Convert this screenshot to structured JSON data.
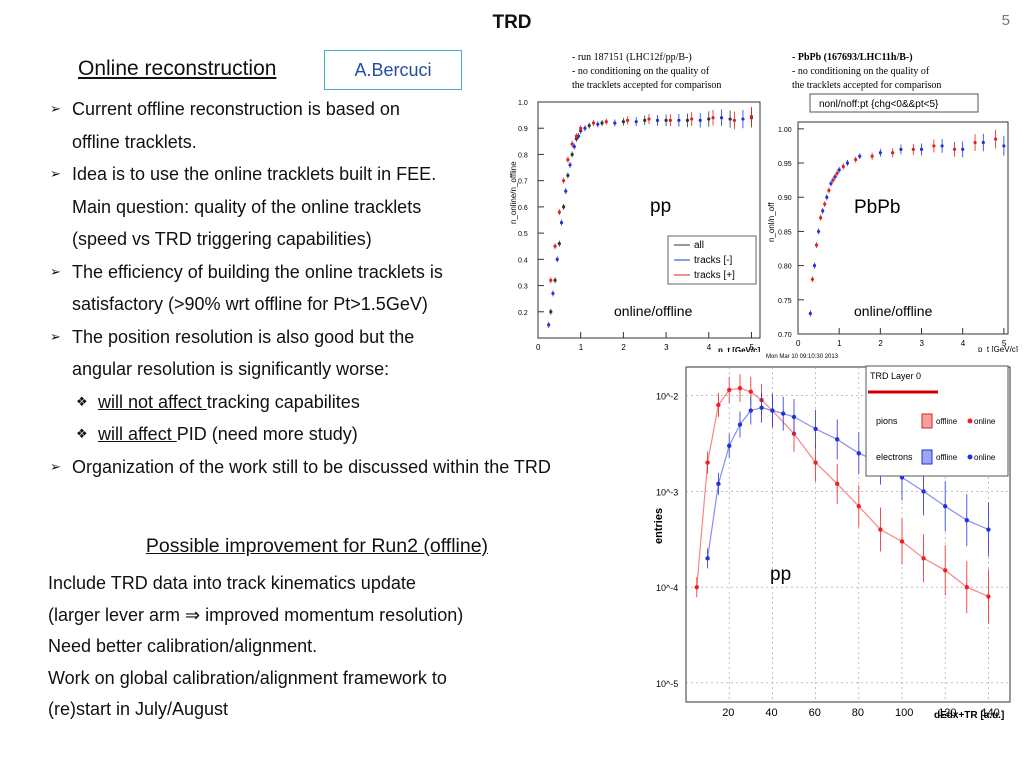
{
  "slide": {
    "title": "TRD",
    "page_number": "5",
    "online_heading": "Online reconstruction",
    "author": "A.Bercuci",
    "bullets": [
      "Current offline reconstruction is based on",
      "offline tracklets.",
      "Idea is to use the online tracklets built in FEE.",
      "Main question:  quality of the online tracklets",
      "(speed vs TRD triggering capabilities)",
      "The efficiency of building the online tracklets is",
      "satisfactory (>90% wrt offline for Pt>1.5GeV)",
      "The position resolution is also good but the",
      "angular resolution is significantly worse:"
    ],
    "sub_bullets": [
      {
        "underlined": "will not affect ",
        "rest": "tracking capabilites"
      },
      {
        "underlined": "will affect ",
        "rest": "PID (need more study)"
      }
    ],
    "last_bullet": "Organization of the work still to be discussed within the TRD",
    "run2_heading": "Possible improvement for Run2 (offline)",
    "run2_lines": [
      "Include TRD data into track kinematics update",
      "(larger lever arm ",
      " improved momentum resolution)",
      "Need better calibration/alignment.",
      "Work on global calibration/alignment framework to",
      "(re)start in July/August"
    ],
    "arrow_symbol": "⇒",
    "bullet_marker": "➢",
    "sub_marker": "❖"
  },
  "chart_data": [
    {
      "type": "scatter",
      "caption": [
        "- run 187151 (LHC12f/pp/B-)",
        "- no conditioning on the quality of",
        "the tracklets accepted for comparison"
      ],
      "overlay_label": "pp",
      "sub_label": "online/offline",
      "ylabel": "n_online/n_offline",
      "xlabel": "p_t [GeV/c]",
      "xlim": [
        0,
        5.2
      ],
      "ylim": [
        0.1,
        1.0
      ],
      "x_ticks": [
        "0",
        "1",
        "2",
        "3",
        "4",
        "5"
      ],
      "y_ticks": [
        "0.2",
        "0.3",
        "0.4",
        "0.5",
        "0.6",
        "0.7",
        "0.8",
        "0.9",
        "1.0"
      ],
      "legend": [
        "all",
        "tracks [-]",
        "tracks [+]"
      ],
      "legend_position": "bottom-right",
      "colors": {
        "all": "#333333",
        "neg": "#2233dd",
        "pos": "#dd2222"
      },
      "series": [
        {
          "name": "all",
          "x": [
            0.3,
            0.4,
            0.5,
            0.6,
            0.7,
            0.8,
            0.9,
            1.0,
            1.2,
            1.5,
            2.0,
            2.5,
            3.0,
            3.5,
            4.0,
            4.5,
            5.0
          ],
          "y": [
            0.2,
            0.32,
            0.46,
            0.6,
            0.72,
            0.8,
            0.86,
            0.89,
            0.91,
            0.92,
            0.925,
            0.93,
            0.93,
            0.93,
            0.935,
            0.935,
            0.94
          ]
        },
        {
          "name": "tracks [-]",
          "x": [
            0.25,
            0.35,
            0.45,
            0.55,
            0.65,
            0.75,
            0.85,
            0.95,
            1.1,
            1.4,
            1.8,
            2.3,
            2.8,
            3.3,
            3.8,
            4.3,
            4.8
          ],
          "y": [
            0.15,
            0.27,
            0.4,
            0.54,
            0.66,
            0.76,
            0.83,
            0.87,
            0.9,
            0.915,
            0.92,
            0.925,
            0.93,
            0.93,
            0.93,
            0.94,
            0.935
          ]
        },
        {
          "name": "tracks [+]",
          "x": [
            0.3,
            0.4,
            0.5,
            0.6,
            0.7,
            0.8,
            0.9,
            1.0,
            1.3,
            1.6,
            2.1,
            2.6,
            3.1,
            3.6,
            4.1,
            4.6,
            5.0
          ],
          "y": [
            0.32,
            0.45,
            0.58,
            0.7,
            0.78,
            0.84,
            0.87,
            0.9,
            0.92,
            0.925,
            0.93,
            0.935,
            0.93,
            0.935,
            0.94,
            0.93,
            0.945
          ]
        }
      ]
    },
    {
      "type": "scatter",
      "caption": [
        "- PbPb (167693/LHC11h/B-)",
        "- no conditioning on the quality of",
        "the tracklets accepted for comparison"
      ],
      "cut_label": "nonl/noff:pt {chg<0&&pt<5}",
      "overlay_label": "PbPb",
      "sub_label": "online/offline",
      "ylabel": "n_onl/n_off",
      "xlabel": "p_t [GeV/c]",
      "xlim": [
        0,
        5.1
      ],
      "ylim": [
        0.7,
        1.01
      ],
      "x_ticks": [
        "0",
        "1",
        "2",
        "3",
        "4",
        "5"
      ],
      "y_ticks": [
        "0.70",
        "0.75",
        "0.80",
        "0.85",
        "0.90",
        "0.95",
        "1.00"
      ],
      "colors": {
        "neg": "#2233dd",
        "pos": "#dd2222"
      },
      "series": [
        {
          "name": "",
          "x": [
            0.3,
            0.4,
            0.5,
            0.6,
            0.7,
            0.8,
            0.9,
            1.0,
            1.2,
            1.5,
            2.0,
            2.5,
            3.0,
            3.5,
            4.0,
            4.5,
            5.0
          ],
          "y": [
            0.73,
            0.8,
            0.85,
            0.88,
            0.9,
            0.92,
            0.93,
            0.94,
            0.95,
            0.96,
            0.965,
            0.97,
            0.97,
            0.975,
            0.97,
            0.98,
            0.975
          ]
        },
        {
          "name": "",
          "x": [
            0.35,
            0.45,
            0.55,
            0.65,
            0.75,
            0.85,
            0.95,
            1.1,
            1.4,
            1.8,
            2.3,
            2.8,
            3.3,
            3.8,
            4.3,
            4.8
          ],
          "y": [
            0.78,
            0.83,
            0.87,
            0.89,
            0.91,
            0.925,
            0.935,
            0.945,
            0.955,
            0.96,
            0.965,
            0.97,
            0.975,
            0.97,
            0.98,
            0.985
          ]
        }
      ]
    },
    {
      "type": "scatter",
      "timestamp": "Mon Mar 10 09:10:30 2013",
      "overlay_label": "pp",
      "ylabel": "entries",
      "xlabel": "dEdx+TR [a.u.]",
      "xlim": [
        0,
        150
      ],
      "y_log": true,
      "x_ticks": [
        "20",
        "40",
        "60",
        "80",
        "100",
        "120",
        "140"
      ],
      "y_ticks": [
        "10^-2",
        "10^-3",
        "10^-4",
        "10^-5"
      ],
      "legend_title": "TRD Layer 0",
      "legend": [
        {
          "particle": "pions",
          "a": "offline",
          "b": "online"
        },
        {
          "particle": "electrons",
          "a": "offline",
          "b": "online"
        }
      ],
      "legend_position": "top-right",
      "colors": {
        "pions": "#ee2222",
        "electrons": "#2233dd"
      },
      "series": [
        {
          "name": "pions online",
          "x": [
            5,
            10,
            15,
            20,
            25,
            30,
            35,
            40,
            50,
            60,
            70,
            80,
            90,
            100,
            110,
            120,
            130,
            140
          ],
          "y": [
            0.0001,
            0.002,
            0.008,
            0.0115,
            0.012,
            0.011,
            0.009,
            0.007,
            0.004,
            0.002,
            0.0012,
            0.0007,
            0.0004,
            0.0003,
            0.0002,
            0.00015,
            0.0001,
            8e-05
          ]
        },
        {
          "name": "electrons online",
          "x": [
            10,
            15,
            20,
            25,
            30,
            35,
            40,
            45,
            50,
            60,
            70,
            80,
            90,
            100,
            110,
            120,
            130,
            140
          ],
          "y": [
            0.0002,
            0.0012,
            0.003,
            0.005,
            0.007,
            0.0075,
            0.007,
            0.0065,
            0.006,
            0.0045,
            0.0035,
            0.0025,
            0.002,
            0.0014,
            0.001,
            0.0007,
            0.0005,
            0.0004
          ]
        }
      ]
    }
  ]
}
